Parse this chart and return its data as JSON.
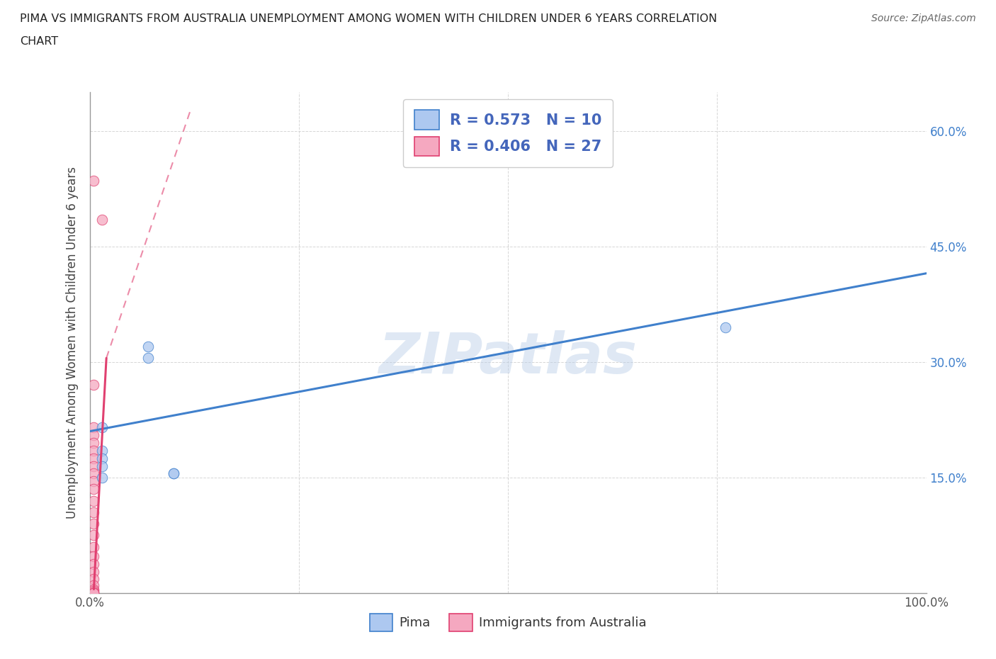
{
  "title_line1": "PIMA VS IMMIGRANTS FROM AUSTRALIA UNEMPLOYMENT AMONG WOMEN WITH CHILDREN UNDER 6 YEARS CORRELATION",
  "title_line2": "CHART",
  "source": "Source: ZipAtlas.com",
  "ylabel": "Unemployment Among Women with Children Under 6 years",
  "xlim": [
    0.0,
    1.0
  ],
  "ylim": [
    0.0,
    0.65
  ],
  "xtick_positions": [
    0.0,
    0.25,
    0.5,
    0.75,
    1.0
  ],
  "ytick_positions": [
    0.0,
    0.15,
    0.3,
    0.45,
    0.6
  ],
  "yticklabels_right": [
    "",
    "15.0%",
    "30.0%",
    "45.0%",
    "60.0%"
  ],
  "xticklabels": [
    "0.0%",
    "",
    "",
    "",
    "100.0%"
  ],
  "blue_R": "0.573",
  "blue_N": "10",
  "pink_R": "0.406",
  "pink_N": "27",
  "blue_fill": "#adc8f0",
  "pink_fill": "#f5a8c0",
  "blue_edge": "#4080cc",
  "pink_edge": "#e04070",
  "legend_text_color": "#4466bb",
  "pima_points": [
    [
      0.015,
      0.215
    ],
    [
      0.015,
      0.185
    ],
    [
      0.015,
      0.175
    ],
    [
      0.015,
      0.165
    ],
    [
      0.015,
      0.15
    ],
    [
      0.07,
      0.32
    ],
    [
      0.07,
      0.305
    ],
    [
      0.1,
      0.155
    ],
    [
      0.1,
      0.155
    ],
    [
      0.76,
      0.345
    ]
  ],
  "australia_points": [
    [
      0.005,
      0.535
    ],
    [
      0.015,
      0.485
    ],
    [
      0.005,
      0.27
    ],
    [
      0.005,
      0.215
    ],
    [
      0.005,
      0.205
    ],
    [
      0.005,
      0.195
    ],
    [
      0.005,
      0.185
    ],
    [
      0.005,
      0.175
    ],
    [
      0.005,
      0.165
    ],
    [
      0.005,
      0.155
    ],
    [
      0.005,
      0.145
    ],
    [
      0.005,
      0.135
    ],
    [
      0.005,
      0.12
    ],
    [
      0.005,
      0.105
    ],
    [
      0.005,
      0.09
    ],
    [
      0.005,
      0.075
    ],
    [
      0.005,
      0.06
    ],
    [
      0.005,
      0.048
    ],
    [
      0.005,
      0.038
    ],
    [
      0.005,
      0.028
    ],
    [
      0.005,
      0.018
    ],
    [
      0.005,
      0.01
    ],
    [
      0.005,
      0.005
    ],
    [
      0.005,
      0.003
    ],
    [
      0.005,
      0.001
    ],
    [
      0.005,
      0.0
    ],
    [
      0.005,
      0.0
    ]
  ],
  "blue_trendline": [
    [
      0.0,
      0.21
    ],
    [
      1.0,
      0.415
    ]
  ],
  "pink_solid_line": [
    [
      0.005,
      0.005
    ],
    [
      0.02,
      0.305
    ]
  ],
  "pink_dashed_line": [
    [
      0.02,
      0.305
    ],
    [
      0.12,
      0.625
    ]
  ],
  "watermark": "ZIPatlas",
  "legend_label_blue": "Pima",
  "legend_label_pink": "Immigrants from Australia",
  "marker_size": 110
}
